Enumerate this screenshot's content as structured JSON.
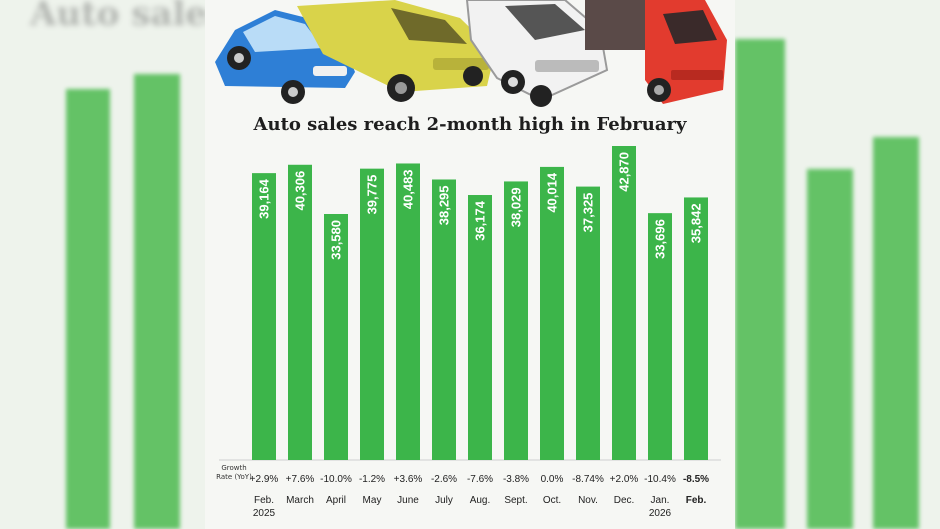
{
  "chart_data": {
    "type": "bar",
    "title": "Auto sales reach 2-month high in February",
    "categories": [
      "Feb. 2025",
      "March",
      "April",
      "May",
      "June",
      "July",
      "Aug.",
      "Sept.",
      "Oct.",
      "Nov.",
      "Dec.",
      "Jan. 2026",
      "Feb."
    ],
    "category_lines": [
      [
        "Feb.",
        "2025"
      ],
      [
        "March"
      ],
      [
        "April"
      ],
      [
        "May"
      ],
      [
        "June"
      ],
      [
        "July"
      ],
      [
        "Aug."
      ],
      [
        "Sept."
      ],
      [
        "Oct."
      ],
      [
        "Nov."
      ],
      [
        "Dec."
      ],
      [
        "Jan.",
        "2026"
      ],
      [
        "Feb."
      ]
    ],
    "values": [
      39164,
      40306,
      33580,
      39775,
      40483,
      38295,
      36174,
      38029,
      40014,
      37325,
      42870,
      33696,
      35842
    ],
    "value_labels": [
      "39,164",
      "40,306",
      "33,580",
      "39,775",
      "40,483",
      "38,295",
      "36,174",
      "38,029",
      "40,014",
      "37,325",
      "42,870",
      "33,696",
      "35,842"
    ],
    "growth_label_lines": [
      "Growth",
      "Rate (YoY)"
    ],
    "growth_rates": [
      "+2.9%",
      "+7.6%",
      "-10.0%",
      "-1.2%",
      "+3.6%",
      "-2.6%",
      "-7.6%",
      "-3.8%",
      "0.0%",
      "-8.74%",
      "+2.0%",
      "-10.4%",
      "-8.5%"
    ],
    "bar_color": "#3cb54a",
    "ylim": [
      0,
      44000
    ],
    "grid": false,
    "legend": "none"
  },
  "colors": {
    "car_blue": "#2e7fd6",
    "jeep_yellow": "#d9d34a",
    "suv_white": "#f2f2f2",
    "truck_red": "#e23b2e"
  }
}
